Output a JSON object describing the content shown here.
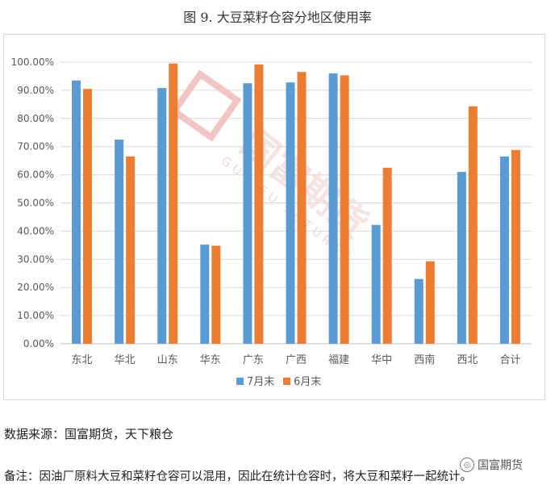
{
  "figure": {
    "title": "图 9.  大豆菜籽仓容分地区使用率"
  },
  "chart_data": {
    "type": "bar",
    "categories": [
      "东北",
      "华北",
      "山东",
      "华东",
      "广东",
      "广西",
      "福建",
      "华中",
      "西南",
      "西北",
      "合计"
    ],
    "series": [
      {
        "name": "7月末",
        "color": "#5b9bd5",
        "values": [
          93.5,
          72.5,
          90.8,
          35.2,
          92.5,
          92.8,
          96.0,
          42.2,
          23.0,
          61.0,
          66.5
        ]
      },
      {
        "name": "6月末",
        "color": "#ed7d31",
        "values": [
          90.5,
          66.5,
          99.5,
          34.8,
          99.2,
          96.5,
          95.3,
          62.5,
          29.3,
          84.3,
          68.8
        ]
      }
    ],
    "ylim": [
      0,
      100
    ],
    "ytick_step": 10,
    "ytick_labels": [
      "0.00%",
      "10.00%",
      "20.00%",
      "30.00%",
      "40.00%",
      "50.00%",
      "60.00%",
      "70.00%",
      "80.00%",
      "90.00%",
      "100.00%"
    ],
    "grid": true,
    "legend_position": "bottom",
    "xlabel": "",
    "ylabel": ""
  },
  "watermark": {
    "text_cn": "国富期货",
    "text_en": "GUO FU FUTURES"
  },
  "footer": {
    "source": "数据来源：国富期货，天下粮仓",
    "remark": "备注：因油厂原料大豆和菜籽仓容可以混用，因此在统计仓容时，将大豆和菜籽一起统计。",
    "badge_text": "国富期货",
    "badge_icon": "wechat-icon"
  }
}
